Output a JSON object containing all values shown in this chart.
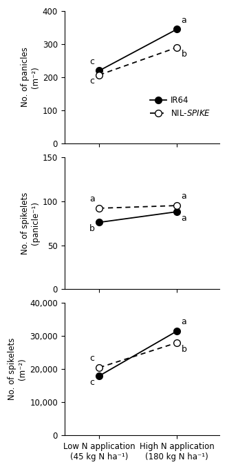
{
  "panel1": {
    "ylabel1": "No. of panicles",
    "ylabel2": "(m⁻²)",
    "ylim": [
      0,
      400
    ],
    "yticks": [
      0,
      100,
      200,
      300,
      400
    ],
    "ir64": [
      220,
      345
    ],
    "nil": [
      207,
      290
    ],
    "labels_left_ir64": "c",
    "labels_left_nil": "c",
    "labels_right_ir64": "a",
    "labels_right_nil": "b",
    "legend": true
  },
  "panel2": {
    "ylabel1": "No. of spikelets",
    "ylabel2": "(panicle⁻¹)",
    "ylim": [
      0,
      150
    ],
    "yticks": [
      0,
      50,
      100,
      150
    ],
    "ir64": [
      76,
      88
    ],
    "nil": [
      92,
      95
    ],
    "labels_left_ir64": "b",
    "labels_left_nil": "a",
    "labels_right_ir64": "a",
    "labels_right_nil": "a",
    "legend": false
  },
  "panel3": {
    "ylabel1": "No. of spikelets",
    "ylabel2": "(m⁻²)",
    "ylim": [
      0,
      40000
    ],
    "yticks": [
      0,
      10000,
      20000,
      30000,
      40000
    ],
    "ir64": [
      18000,
      31500
    ],
    "nil": [
      20500,
      28000
    ],
    "labels_left_ir64": "c",
    "labels_left_nil": "c",
    "labels_right_ir64": "a",
    "labels_right_nil": "b",
    "legend": false
  },
  "xticklabels": [
    "Low N application\n(45 kg N ha⁻¹)",
    "High N application\n(180 kg N ha⁻¹)"
  ],
  "ir64_label": "IR64",
  "nil_label": "NIL-SPIKE",
  "marker_size": 7,
  "line_width": 1.3,
  "font_size": 8.5,
  "label_font_size": 9,
  "tick_font_size": 8.5
}
